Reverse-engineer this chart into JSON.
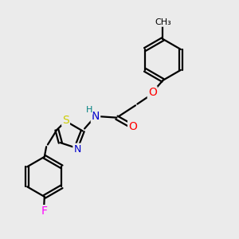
{
  "bg_color": "#ebebeb",
  "bond_color": "#000000",
  "bond_width": 1.6,
  "atom_colors": {
    "N": "#0000CC",
    "O": "#FF0000",
    "S": "#CCCC00",
    "F": "#FF00FF",
    "H": "#008080",
    "C": "#000000"
  },
  "font_size_atom": 9,
  "fig_size": [
    3.0,
    3.0
  ],
  "dpi": 100
}
